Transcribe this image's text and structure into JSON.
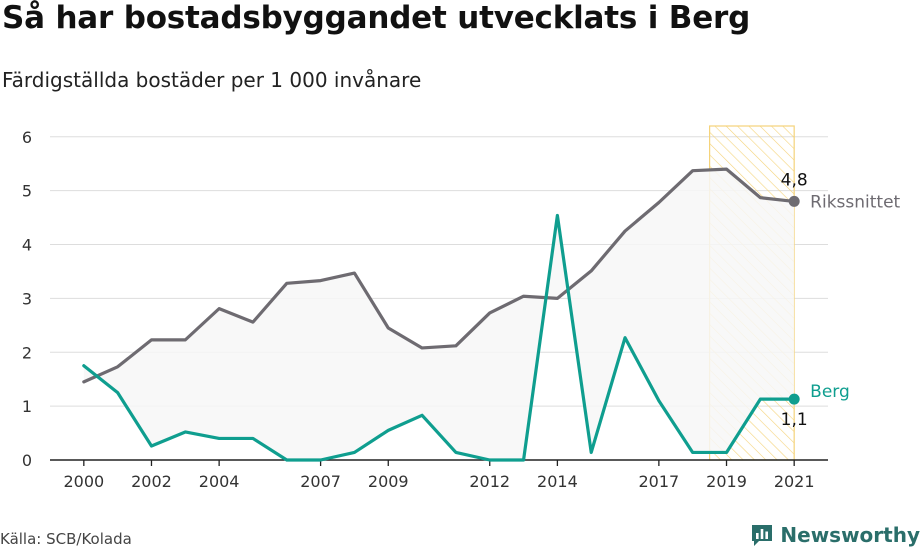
{
  "title": "Så har bostadsbyggandet utvecklats i Berg",
  "subtitle": "Färdigställda bostäder per 1 000 invånare",
  "source": "Källa: SCB/Kolada",
  "brand": "Newsworthy",
  "colors": {
    "riks": "#6e6b71",
    "berg": "#0f9e8f",
    "band_fill": "#f7f7f7",
    "highlight": "#f5d37a",
    "grid": "#dddddd",
    "brand": "#2a6e6a"
  },
  "chart_data": {
    "type": "line",
    "x": [
      2000,
      2001,
      2002,
      2003,
      2004,
      2005,
      2006,
      2007,
      2008,
      2009,
      2010,
      2011,
      2012,
      2013,
      2014,
      2015,
      2016,
      2017,
      2018,
      2019,
      2020,
      2021
    ],
    "series": [
      {
        "name": "Rikssnittet",
        "values": [
          1.45,
          1.73,
          2.23,
          2.23,
          2.81,
          2.56,
          3.28,
          3.33,
          3.47,
          2.45,
          2.08,
          2.12,
          2.73,
          3.04,
          3.0,
          3.51,
          4.25,
          4.78,
          5.37,
          5.4,
          4.87,
          4.8
        ],
        "end_label": "4,8"
      },
      {
        "name": "Berg",
        "values": [
          1.75,
          1.25,
          0.26,
          0.52,
          0.4,
          0.4,
          0.0,
          0.0,
          0.14,
          0.55,
          0.83,
          0.14,
          0.0,
          0.0,
          4.54,
          0.14,
          2.27,
          1.1,
          0.14,
          0.14,
          1.13,
          1.13
        ],
        "end_label": "1,1"
      }
    ],
    "xticks": [
      "2000",
      "2002",
      "2004",
      "2007",
      "2009",
      "2012",
      "2014",
      "2017",
      "2019",
      "2021"
    ],
    "yticks": [
      "0",
      "1",
      "2",
      "3",
      "4",
      "5",
      "6"
    ],
    "ylim": [
      0,
      6.2
    ],
    "xlim": [
      1999.0,
      2022.0
    ],
    "highlight_range": [
      2018.5,
      2021
    ],
    "grid": true
  }
}
